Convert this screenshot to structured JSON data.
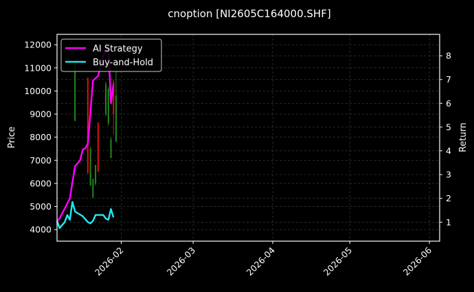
{
  "chart_data": {
    "type": "line",
    "title": "cnoption [NI2605C164000.SHF]",
    "xlabel": "",
    "ylabel": "Price",
    "ylabel_right": "Return",
    "x_ticks": [
      "2026-02",
      "2026-03",
      "2026-04",
      "2026-05",
      "2026-06"
    ],
    "y_ticks_left": [
      4000,
      5000,
      6000,
      7000,
      8000,
      9000,
      10000,
      11000,
      12000
    ],
    "y_ticks_right": [
      1,
      2,
      3,
      4,
      5,
      6,
      7,
      8
    ],
    "ylim_left": [
      3500,
      12450
    ],
    "ylim_right": [
      0.2,
      8.9
    ],
    "xlim": [
      "2026-01-07",
      "2026-06-05"
    ],
    "grid": true,
    "legend_position": "upper left",
    "legend": [
      {
        "label": "AI Strategy",
        "color": "#ff00ff"
      },
      {
        "label": "Buy-and-Hold",
        "color": "#22e5ee"
      }
    ],
    "candles": [
      {
        "date": "2026-01-14",
        "open": 11300,
        "close": 8700,
        "high": 11300,
        "low": 8700,
        "color": "#1e8a1e"
      },
      {
        "date": "2026-01-19",
        "open": 6450,
        "close": 10550,
        "high": 10600,
        "low": 6400,
        "color": "#e01010"
      },
      {
        "date": "2026-01-20",
        "open": 7500,
        "close": 5900,
        "high": 7600,
        "low": 5900,
        "color": "#1e8a1e"
      },
      {
        "date": "2026-01-21",
        "open": 6200,
        "close": 5400,
        "high": 6200,
        "low": 5350,
        "color": "#1e8a1e"
      },
      {
        "date": "2026-01-22",
        "open": 6800,
        "close": 6000,
        "high": 6800,
        "low": 5900,
        "color": "#1e8a1e"
      },
      {
        "date": "2026-01-23",
        "open": 6500,
        "close": 8600,
        "high": 8650,
        "low": 6500,
        "color": "#e01010"
      },
      {
        "date": "2026-01-26",
        "open": 10300,
        "close": 9000,
        "high": 10400,
        "low": 8900,
        "color": "#1e8a1e"
      },
      {
        "date": "2026-01-27",
        "open": 10100,
        "close": 8600,
        "high": 10200,
        "low": 8500,
        "color": "#1e8a1e"
      },
      {
        "date": "2026-01-28",
        "open": 7900,
        "close": 7100,
        "high": 8000,
        "low": 7100,
        "color": "#1e8a1e"
      },
      {
        "date": "2026-01-29",
        "open": 9000,
        "close": 10400,
        "high": 10500,
        "low": 8100,
        "color": "#e01010"
      },
      {
        "date": "2026-01-30",
        "open": 9800,
        "close": 7800,
        "high": 11300,
        "low": 7800,
        "color": "#1e8a1e"
      }
    ],
    "series": [
      {
        "name": "AI Strategy",
        "axis": "right",
        "color": "#ff00ff",
        "points": [
          [
            "2026-01-07",
            1.05
          ],
          [
            "2026-01-08",
            1.15
          ],
          [
            "2026-01-12",
            2.0
          ],
          [
            "2026-01-14",
            3.35
          ],
          [
            "2026-01-16",
            3.6
          ],
          [
            "2026-01-17",
            4.05
          ],
          [
            "2026-01-18",
            4.1
          ],
          [
            "2026-01-19",
            4.3
          ],
          [
            "2026-01-21",
            6.95
          ],
          [
            "2026-01-23",
            7.15
          ],
          [
            "2026-01-25",
            8.0
          ],
          [
            "2026-01-27",
            8.4
          ],
          [
            "2026-01-28",
            6.0
          ],
          [
            "2026-01-29",
            6.8
          ]
        ]
      },
      {
        "name": "Buy-and-Hold",
        "axis": "right",
        "color": "#22e5ee",
        "points": [
          [
            "2026-01-07",
            1.05
          ],
          [
            "2026-01-08",
            0.75
          ],
          [
            "2026-01-10",
            1.0
          ],
          [
            "2026-01-11",
            1.3
          ],
          [
            "2026-01-12",
            1.1
          ],
          [
            "2026-01-13",
            1.85
          ],
          [
            "2026-01-14",
            1.45
          ],
          [
            "2026-01-17",
            1.25
          ],
          [
            "2026-01-19",
            1.0
          ],
          [
            "2026-01-20",
            0.95
          ],
          [
            "2026-01-21",
            1.05
          ],
          [
            "2026-01-22",
            1.3
          ],
          [
            "2026-01-25",
            1.3
          ],
          [
            "2026-01-26",
            1.15
          ],
          [
            "2026-01-27",
            1.1
          ],
          [
            "2026-01-28",
            1.55
          ],
          [
            "2026-01-29",
            1.2
          ]
        ]
      }
    ]
  }
}
